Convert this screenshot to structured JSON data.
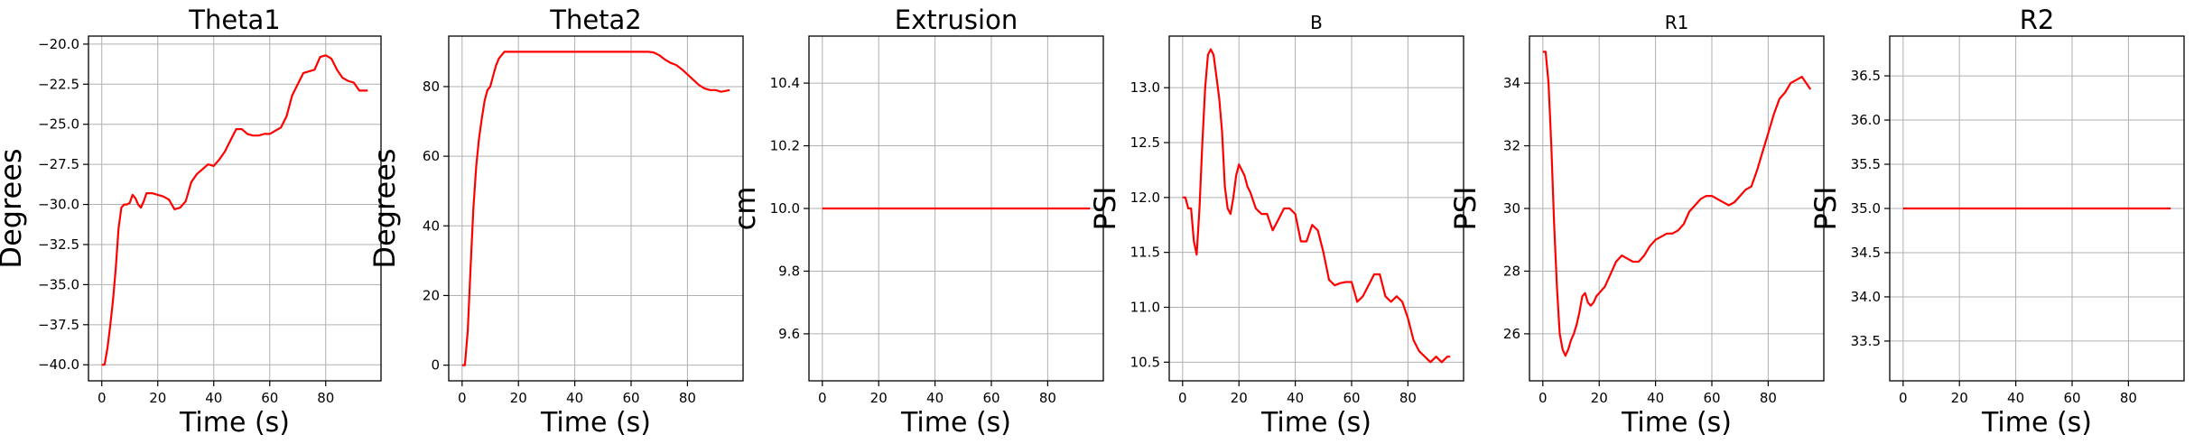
{
  "chart_data": [
    {
      "type": "line",
      "title": "Theta1",
      "xlabel": "Time (s)",
      "ylabel": "Degrees",
      "xlim": [
        -4.75,
        99.75
      ],
      "ylim": [
        -41.0,
        -19.5
      ],
      "xticks": [
        0,
        20,
        40,
        60,
        80
      ],
      "yticks": [
        -40.0,
        -37.5,
        -35.0,
        -32.5,
        -30.0,
        -27.5,
        -25.0,
        -22.5,
        -20.0
      ],
      "ytick_labels": [
        "−40.0",
        "−37.5",
        "−35.0",
        "−32.5",
        "−30.0",
        "−27.5",
        "−25.0",
        "−22.5",
        "−20.0"
      ],
      "grid": true,
      "color": "#ff0000",
      "x": [
        0,
        1,
        2,
        3,
        4,
        5,
        6,
        7,
        8,
        9,
        10,
        11,
        12,
        13,
        14,
        15,
        16,
        17,
        18,
        20,
        22,
        24,
        26,
        28,
        30,
        32,
        34,
        36,
        38,
        40,
        42,
        44,
        46,
        48,
        50,
        52,
        54,
        56,
        58,
        60,
        62,
        64,
        66,
        68,
        70,
        72,
        74,
        76,
        78,
        80,
        82,
        84,
        86,
        88,
        90,
        92,
        95
      ],
      "y": [
        -40.0,
        -40.0,
        -39.0,
        -37.6,
        -36.0,
        -34.0,
        -31.5,
        -30.2,
        -30.0,
        -30.0,
        -29.9,
        -29.4,
        -29.6,
        -30.0,
        -30.2,
        -29.8,
        -29.3,
        -29.3,
        -29.3,
        -29.4,
        -29.5,
        -29.7,
        -30.3,
        -30.2,
        -29.8,
        -28.6,
        -28.1,
        -27.8,
        -27.5,
        -27.6,
        -27.2,
        -26.7,
        -26.0,
        -25.3,
        -25.3,
        -25.6,
        -25.7,
        -25.7,
        -25.6,
        -25.6,
        -25.4,
        -25.2,
        -24.5,
        -23.2,
        -22.5,
        -21.8,
        -21.7,
        -21.6,
        -20.8,
        -20.7,
        -20.9,
        -21.6,
        -22.1,
        -22.3,
        -22.4,
        -22.9,
        -22.9
      ]
    },
    {
      "type": "line",
      "title": "Theta2",
      "xlabel": "Time (s)",
      "ylabel": "Degrees",
      "xlim": [
        -4.75,
        99.75
      ],
      "ylim": [
        -4.5,
        94.5
      ],
      "xticks": [
        0,
        20,
        40,
        60,
        80
      ],
      "yticks": [
        0,
        20,
        40,
        60,
        80
      ],
      "ytick_labels": [
        "0",
        "20",
        "40",
        "60",
        "80"
      ],
      "grid": true,
      "color": "#ff0000",
      "x": [
        0,
        1,
        2,
        3,
        4,
        5,
        6,
        7,
        8,
        9,
        10,
        11,
        12,
        13,
        14,
        15,
        16,
        20,
        30,
        40,
        50,
        60,
        66,
        68,
        70,
        72,
        74,
        76,
        78,
        80,
        82,
        84,
        86,
        88,
        90,
        92,
        95
      ],
      "y": [
        0,
        0,
        10,
        28,
        45,
        57,
        65,
        71,
        76,
        79,
        80,
        83,
        86,
        88,
        89,
        90,
        90,
        90,
        90,
        90,
        90,
        90,
        90,
        89.8,
        89,
        87.8,
        86.8,
        86.2,
        85,
        83.5,
        82,
        80.5,
        79.5,
        79,
        79,
        78.5,
        79
      ]
    },
    {
      "type": "line",
      "title": "Extrusion",
      "xlabel": "Time (s)",
      "ylabel": "cm",
      "xlim": [
        -4.75,
        99.75
      ],
      "ylim": [
        9.45,
        10.55
      ],
      "xticks": [
        0,
        20,
        40,
        60,
        80
      ],
      "yticks": [
        9.6,
        9.8,
        10.0,
        10.2,
        10.4
      ],
      "ytick_labels": [
        "9.6",
        "9.8",
        "10.0",
        "10.2",
        "10.4"
      ],
      "grid": true,
      "color": "#ff0000",
      "x": [
        0,
        95
      ],
      "y": [
        10.0,
        10.0
      ]
    },
    {
      "type": "line",
      "title": "B",
      "xlabel": "Time (s)",
      "ylabel": "PSI",
      "xlim": [
        -4.75,
        99.75
      ],
      "ylim": [
        10.33,
        13.47
      ],
      "xticks": [
        0,
        20,
        40,
        60,
        80
      ],
      "yticks": [
        10.5,
        11.0,
        11.5,
        12.0,
        12.5,
        13.0
      ],
      "ytick_labels": [
        "10.5",
        "11.0",
        "11.5",
        "12.0",
        "12.5",
        "13.0"
      ],
      "grid": true,
      "color": "#ff0000",
      "x": [
        0,
        1,
        2,
        3,
        4,
        5,
        6,
        7,
        8,
        9,
        10,
        11,
        12,
        13,
        14,
        15,
        16,
        17,
        18,
        19,
        20,
        21,
        22,
        23,
        24,
        26,
        28,
        30,
        32,
        34,
        36,
        38,
        40,
        42,
        44,
        46,
        48,
        50,
        52,
        54,
        56,
        58,
        60,
        62,
        64,
        66,
        68,
        70,
        72,
        74,
        76,
        78,
        80,
        82,
        84,
        86,
        88,
        90,
        92,
        94,
        95
      ],
      "y": [
        12.0,
        12.0,
        11.9,
        11.9,
        11.6,
        11.48,
        11.9,
        12.5,
        13.0,
        13.3,
        13.35,
        13.3,
        13.1,
        12.9,
        12.6,
        12.1,
        11.9,
        11.85,
        12.0,
        12.2,
        12.3,
        12.25,
        12.2,
        12.1,
        12.05,
        11.9,
        11.85,
        11.85,
        11.7,
        11.8,
        11.9,
        11.9,
        11.85,
        11.6,
        11.6,
        11.75,
        11.7,
        11.5,
        11.25,
        11.2,
        11.22,
        11.23,
        11.23,
        11.05,
        11.1,
        11.2,
        11.3,
        11.3,
        11.1,
        11.05,
        11.1,
        11.05,
        10.9,
        10.7,
        10.6,
        10.55,
        10.5,
        10.55,
        10.5,
        10.55,
        10.55
      ]
    },
    {
      "type": "line",
      "title": "R1",
      "xlabel": "Time (s)",
      "ylabel": "PSI",
      "xlim": [
        -4.75,
        99.75
      ],
      "ylim": [
        24.5,
        35.5
      ],
      "xticks": [
        0,
        20,
        40,
        60,
        80
      ],
      "yticks": [
        26,
        28,
        30,
        32,
        34
      ],
      "ytick_labels": [
        "26",
        "28",
        "30",
        "32",
        "34"
      ],
      "grid": true,
      "color": "#ff0000",
      "x": [
        0,
        1,
        2,
        3,
        4,
        5,
        6,
        7,
        8,
        9,
        10,
        11,
        12,
        13,
        14,
        15,
        16,
        17,
        18,
        19,
        20,
        22,
        24,
        26,
        28,
        30,
        32,
        34,
        36,
        38,
        40,
        42,
        44,
        46,
        48,
        50,
        52,
        54,
        56,
        58,
        60,
        62,
        64,
        66,
        68,
        70,
        72,
        74,
        76,
        78,
        80,
        82,
        84,
        86,
        88,
        90,
        92,
        95
      ],
      "y": [
        35.0,
        35.0,
        34.0,
        32.0,
        29.5,
        27.5,
        26.0,
        25.5,
        25.3,
        25.5,
        25.8,
        26.0,
        26.3,
        26.7,
        27.2,
        27.3,
        27.0,
        26.9,
        27.0,
        27.2,
        27.3,
        27.5,
        27.9,
        28.3,
        28.5,
        28.4,
        28.3,
        28.3,
        28.5,
        28.8,
        29.0,
        29.1,
        29.2,
        29.2,
        29.3,
        29.5,
        29.9,
        30.1,
        30.3,
        30.4,
        30.4,
        30.3,
        30.2,
        30.1,
        30.2,
        30.4,
        30.6,
        30.7,
        31.2,
        31.8,
        32.4,
        33.0,
        33.5,
        33.7,
        34.0,
        34.1,
        34.2,
        33.8
      ]
    },
    {
      "type": "line",
      "title": "R2",
      "xlabel": "Time (s)",
      "ylabel": "PSI",
      "xlim": [
        -4.75,
        99.75
      ],
      "ylim": [
        33.05,
        36.95
      ],
      "xticks": [
        0,
        20,
        40,
        60,
        80
      ],
      "yticks": [
        33.5,
        34.0,
        34.5,
        35.0,
        35.5,
        36.0,
        36.5
      ],
      "ytick_labels": [
        "33.5",
        "34.0",
        "34.5",
        "35.0",
        "35.5",
        "36.0",
        "36.5"
      ],
      "grid": true,
      "color": "#ff0000",
      "x": [
        0,
        95
      ],
      "y": [
        35.0,
        35.0
      ]
    }
  ]
}
